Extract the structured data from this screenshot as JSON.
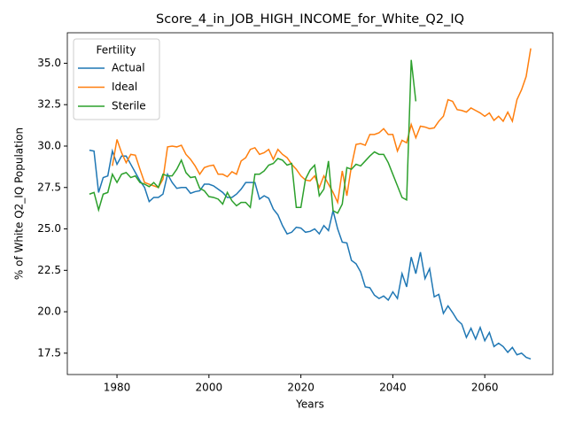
{
  "chart_data": {
    "type": "line",
    "title": "Score_4_in_JOB_HIGH_INCOME_for_White_Q2_IQ",
    "xlabel": "Years",
    "ylabel": "% of White Q2_IQ Population",
    "legend_title": "Fertility",
    "legend": "upper left",
    "x": [
      1974,
      1975,
      1976,
      1977,
      1978,
      1979,
      1980,
      1981,
      1982,
      1983,
      1984,
      1985,
      1986,
      1987,
      1988,
      1989,
      1990,
      1991,
      1992,
      1993,
      1994,
      1995,
      1996,
      1997,
      1998,
      1999,
      2000,
      2001,
      2002,
      2003,
      2004,
      2005,
      2006,
      2007,
      2008,
      2009,
      2010,
      2011,
      2012,
      2013,
      2014,
      2015,
      2016,
      2017,
      2018,
      2019,
      2020,
      2021,
      2022,
      2023,
      2024,
      2025,
      2026,
      2027,
      2028,
      2029,
      2030,
      2031,
      2032,
      2033,
      2034,
      2035,
      2036,
      2037,
      2038,
      2039,
      2040,
      2041,
      2042,
      2043,
      2044,
      2045,
      2046,
      2047,
      2048,
      2049,
      2050,
      2051,
      2052,
      2053,
      2054,
      2055,
      2056,
      2057,
      2058,
      2059,
      2060,
      2061,
      2062,
      2063,
      2064,
      2065,
      2066,
      2067,
      2068,
      2069,
      2070
    ],
    "series": [
      {
        "name": "Actual",
        "color": "#1f77b4",
        "values": [
          29.75,
          29.7,
          27.2,
          28.1,
          28.2,
          29.7,
          28.9,
          29.4,
          29.4,
          28.9,
          28.4,
          27.9,
          27.5,
          26.65,
          26.9,
          26.9,
          27.1,
          28.3,
          27.8,
          27.45,
          27.5,
          27.5,
          27.15,
          27.25,
          27.3,
          27.7,
          27.7,
          27.6,
          27.4,
          27.2,
          26.9,
          26.9,
          27.1,
          27.4,
          27.8,
          27.8,
          27.8,
          26.8,
          27.0,
          26.85,
          26.2,
          25.85,
          25.2,
          24.7,
          24.8,
          25.1,
          25.05,
          24.8,
          24.85,
          25.0,
          24.7,
          25.2,
          24.9,
          26.1,
          25.0,
          24.2,
          24.15,
          23.1,
          22.9,
          22.4,
          21.5,
          21.45,
          21.0,
          20.8,
          20.95,
          20.7,
          21.2,
          20.8,
          22.3,
          21.5,
          23.3,
          22.3,
          23.6,
          22.0,
          22.6,
          20.9,
          21.05,
          19.9,
          20.35,
          19.95,
          19.5,
          19.25,
          18.45,
          19.0,
          18.35,
          19.05,
          18.25,
          18.75,
          17.9,
          18.1,
          17.9,
          17.55,
          17.85,
          17.4,
          17.5,
          17.25,
          17.15
        ]
      },
      {
        "name": "Ideal",
        "color": "#ff7f0e",
        "values": [
          null,
          null,
          null,
          null,
          null,
          28.8,
          30.4,
          29.6,
          29.0,
          29.5,
          29.45,
          28.6,
          27.8,
          27.7,
          27.6,
          27.5,
          28.0,
          29.95,
          30.0,
          29.95,
          30.05,
          29.5,
          29.2,
          28.8,
          28.3,
          28.7,
          28.8,
          28.85,
          28.3,
          28.3,
          28.15,
          28.45,
          28.3,
          29.1,
          29.3,
          29.8,
          29.9,
          29.5,
          29.6,
          29.8,
          29.2,
          29.8,
          29.5,
          29.3,
          28.9,
          28.6,
          28.2,
          27.95,
          27.9,
          28.2,
          27.5,
          28.2,
          27.7,
          27.2,
          26.6,
          28.5,
          27.0,
          28.8,
          30.1,
          30.15,
          30.05,
          30.7,
          30.7,
          30.8,
          31.05,
          30.7,
          30.7,
          29.7,
          30.35,
          30.2,
          31.3,
          30.5,
          31.2,
          31.15,
          31.05,
          31.1,
          31.5,
          31.8,
          32.8,
          32.7,
          32.2,
          32.15,
          32.05,
          32.3,
          32.15,
          32.0,
          31.8,
          32.0,
          31.55,
          31.8,
          31.5,
          32.05,
          31.5,
          32.8,
          33.4,
          34.2,
          35.9
        ]
      },
      {
        "name": "Sterile",
        "color": "#2ca02c",
        "values": [
          27.1,
          27.2,
          26.15,
          27.1,
          27.2,
          28.3,
          27.8,
          28.3,
          28.4,
          28.1,
          28.2,
          27.8,
          27.7,
          27.55,
          27.8,
          27.5,
          28.3,
          28.2,
          28.2,
          28.6,
          29.15,
          28.4,
          28.1,
          28.15,
          27.45,
          27.3,
          26.95,
          26.9,
          26.8,
          26.5,
          27.2,
          26.7,
          26.4,
          26.6,
          26.6,
          26.3,
          28.3,
          28.3,
          28.5,
          28.85,
          28.95,
          29.25,
          29.15,
          28.85,
          28.95,
          26.3,
          26.3,
          28.0,
          28.55,
          28.85,
          27.0,
          27.4,
          29.1,
          26.1,
          25.95,
          26.5,
          28.7,
          28.6,
          28.9,
          28.8,
          29.1,
          29.4,
          29.65,
          29.5,
          29.5,
          29.0,
          28.3,
          27.6,
          26.9,
          26.75,
          35.2,
          32.7,
          null,
          null,
          null,
          null,
          null,
          null,
          null,
          null,
          null,
          null,
          null,
          null,
          null,
          null,
          null,
          null,
          null,
          null,
          null,
          null,
          null,
          null,
          null,
          null,
          null
        ]
      }
    ],
    "xlim": [
      1969.2,
      2074.8
    ],
    "xticks": [
      1980,
      2000,
      2020,
      2040,
      2060
    ],
    "ylim": [
      16.21,
      36.84
    ],
    "yticks": [
      17.5,
      {
        "value": 20.0,
        "label": "20.0"
      },
      22.5,
      {
        "value": 25.0,
        "label": "25.0"
      },
      27.5,
      {
        "value": 30.0,
        "label": "30.0"
      },
      32.5,
      {
        "value": 35.0,
        "label": "35.0"
      }
    ],
    "grid": false
  }
}
